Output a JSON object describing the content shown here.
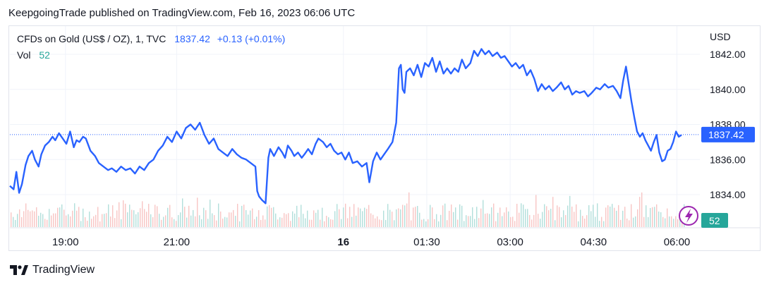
{
  "header": {
    "published": "KeepgoingTrade published on TradingView.com, Feb 16, 2023 06:06 UTC"
  },
  "legend": {
    "symbol": "CFDs on Gold (US$ / OZ), 1, TVC",
    "price": "1837.42",
    "change": "+0.13 (+0.01%)",
    "vol_label": "Vol",
    "vol_value": "52"
  },
  "axis": {
    "currency": "USD",
    "last_price_label": "1837.42",
    "last_volume_label": "52"
  },
  "footer": {
    "brand": "TradingView"
  },
  "colors": {
    "line": "#2962ff",
    "vol_up": "#26a69a",
    "vol_down": "#ef5350",
    "badge": "#9c27b0"
  },
  "icons": {
    "flash": "lightning-icon",
    "logo": "tradingview-logo-icon"
  },
  "chart_data": {
    "type": "line",
    "title": "CFDs on Gold (US$ / OZ), 1, TVC",
    "ylabel": "USD",
    "ylim": [
      1833.0,
      1843.0
    ],
    "yticks": [
      "1834.00",
      "1836.00",
      "1838.00",
      "1840.00",
      "1842.00"
    ],
    "xticks": [
      "19:00",
      "21:00",
      "16",
      "01:30",
      "03:00",
      "04:30",
      "06:00"
    ],
    "x_start": "18:00",
    "x_end": "06:08",
    "last_price": 1837.42,
    "series": [
      {
        "name": "",
        "points": [
          [
            "18:00",
            1834.5
          ],
          [
            "18:04",
            1834.3
          ],
          [
            "18:07",
            1835.3
          ],
          [
            "18:10",
            1834.1
          ],
          [
            "18:13",
            1834.6
          ],
          [
            "18:17",
            1835.7
          ],
          [
            "18:20",
            1836.2
          ],
          [
            "18:24",
            1836.5
          ],
          [
            "18:27",
            1836.0
          ],
          [
            "18:31",
            1835.6
          ],
          [
            "18:34",
            1836.3
          ],
          [
            "18:38",
            1836.8
          ],
          [
            "18:42",
            1837.0
          ],
          [
            "18:46",
            1837.3
          ],
          [
            "18:49",
            1837.1
          ],
          [
            "18:53",
            1837.5
          ],
          [
            "18:57",
            1837.2
          ],
          [
            "19:01",
            1836.9
          ],
          [
            "19:05",
            1837.6
          ],
          [
            "19:09",
            1836.7
          ],
          [
            "19:12",
            1837.1
          ],
          [
            "19:15",
            1837.0
          ],
          [
            "19:19",
            1837.3
          ],
          [
            "19:22",
            1837.2
          ],
          [
            "19:27",
            1836.5
          ],
          [
            "19:32",
            1836.2
          ],
          [
            "19:36",
            1835.8
          ],
          [
            "19:41",
            1835.6
          ],
          [
            "19:46",
            1835.4
          ],
          [
            "19:50",
            1835.5
          ],
          [
            "19:55",
            1835.3
          ],
          [
            "20:00",
            1835.6
          ],
          [
            "20:05",
            1835.4
          ],
          [
            "20:10",
            1835.5
          ],
          [
            "20:15",
            1835.2
          ],
          [
            "20:20",
            1835.6
          ],
          [
            "20:25",
            1835.4
          ],
          [
            "20:30",
            1835.8
          ],
          [
            "20:35",
            1836.0
          ],
          [
            "20:40",
            1836.5
          ],
          [
            "20:45",
            1836.8
          ],
          [
            "20:50",
            1837.3
          ],
          [
            "20:55",
            1837.0
          ],
          [
            "21:00",
            1837.6
          ],
          [
            "21:05",
            1837.2
          ],
          [
            "21:10",
            1837.8
          ],
          [
            "21:15",
            1838.0
          ],
          [
            "21:20",
            1837.7
          ],
          [
            "21:25",
            1838.1
          ],
          [
            "21:30",
            1837.4
          ],
          [
            "21:35",
            1836.9
          ],
          [
            "21:40",
            1837.2
          ],
          [
            "21:45",
            1836.6
          ],
          [
            "21:50",
            1836.4
          ],
          [
            "21:55",
            1836.2
          ],
          [
            "22:00",
            1836.6
          ],
          [
            "22:05",
            1836.3
          ],
          [
            "22:10",
            1836.1
          ],
          [
            "22:15",
            1836.0
          ],
          [
            "22:20",
            1835.8
          ],
          [
            "22:25",
            1835.6
          ],
          [
            "22:27",
            1834.2
          ],
          [
            "22:29",
            1833.9
          ],
          [
            "22:32",
            1833.7
          ],
          [
            "22:36",
            1833.5
          ],
          [
            "22:39",
            1836.1
          ],
          [
            "22:41",
            1836.6
          ],
          [
            "22:45",
            1836.2
          ],
          [
            "22:50",
            1836.7
          ],
          [
            "22:54",
            1836.4
          ],
          [
            "22:57",
            1836.1
          ],
          [
            "23:00",
            1836.8
          ],
          [
            "23:04",
            1836.5
          ],
          [
            "23:07",
            1836.2
          ],
          [
            "23:11",
            1836.4
          ],
          [
            "23:15",
            1836.1
          ],
          [
            "23:18",
            1836.3
          ],
          [
            "23:22",
            1836.6
          ],
          [
            "23:26",
            1836.3
          ],
          [
            "23:30",
            1836.9
          ],
          [
            "23:33",
            1837.2
          ],
          [
            "23:38",
            1837.0
          ],
          [
            "23:42",
            1836.7
          ],
          [
            "23:46",
            1836.9
          ],
          [
            "23:50",
            1836.5
          ],
          [
            "23:54",
            1836.3
          ],
          [
            "23:58",
            1836.4
          ],
          [
            "00:02",
            1836.0
          ],
          [
            "00:06",
            1836.4
          ],
          [
            "00:10",
            1835.8
          ],
          [
            "00:15",
            1835.9
          ],
          [
            "00:20",
            1835.6
          ],
          [
            "00:25",
            1835.8
          ],
          [
            "00:28",
            1834.7
          ],
          [
            "00:32",
            1835.9
          ],
          [
            "00:36",
            1836.4
          ],
          [
            "00:40",
            1836.0
          ],
          [
            "00:44",
            1836.3
          ],
          [
            "00:48",
            1836.6
          ],
          [
            "00:53",
            1837.0
          ],
          [
            "00:57",
            1838.1
          ],
          [
            "01:00",
            1841.2
          ],
          [
            "01:02",
            1841.4
          ],
          [
            "01:04",
            1840.0
          ],
          [
            "01:06",
            1839.8
          ],
          [
            "01:08",
            1841.0
          ],
          [
            "01:12",
            1841.2
          ],
          [
            "01:16",
            1840.8
          ],
          [
            "01:20",
            1841.4
          ],
          [
            "01:24",
            1840.7
          ],
          [
            "01:28",
            1841.5
          ],
          [
            "01:32",
            1841.3
          ],
          [
            "01:36",
            1841.8
          ],
          [
            "01:40",
            1841.0
          ],
          [
            "01:44",
            1841.6
          ],
          [
            "01:48",
            1840.9
          ],
          [
            "01:52",
            1841.2
          ],
          [
            "01:56",
            1840.9
          ],
          [
            "02:00",
            1841.2
          ],
          [
            "02:04",
            1841.0
          ],
          [
            "02:08",
            1841.7
          ],
          [
            "02:12",
            1841.2
          ],
          [
            "02:17",
            1841.5
          ],
          [
            "02:21",
            1842.2
          ],
          [
            "02:25",
            1841.9
          ],
          [
            "02:29",
            1842.3
          ],
          [
            "02:33",
            1842.0
          ],
          [
            "02:37",
            1842.2
          ],
          [
            "02:41",
            1841.9
          ],
          [
            "02:46",
            1842.1
          ],
          [
            "02:50",
            1841.8
          ],
          [
            "02:54",
            1841.9
          ],
          [
            "02:58",
            1841.6
          ],
          [
            "03:02",
            1841.3
          ],
          [
            "03:06",
            1841.5
          ],
          [
            "03:10",
            1841.2
          ],
          [
            "03:14",
            1841.4
          ],
          [
            "03:18",
            1840.8
          ],
          [
            "03:22",
            1841.1
          ],
          [
            "03:26",
            1840.6
          ],
          [
            "03:30",
            1839.9
          ],
          [
            "03:34",
            1840.3
          ],
          [
            "03:38",
            1840.0
          ],
          [
            "03:42",
            1840.2
          ],
          [
            "03:46",
            1839.9
          ],
          [
            "03:50",
            1840.1
          ],
          [
            "03:55",
            1840.4
          ],
          [
            "03:59",
            1840.0
          ],
          [
            "04:03",
            1840.2
          ],
          [
            "04:07",
            1839.7
          ],
          [
            "04:11",
            1839.9
          ],
          [
            "04:15",
            1839.8
          ],
          [
            "04:20",
            1839.9
          ],
          [
            "04:24",
            1839.6
          ],
          [
            "04:28",
            1839.8
          ],
          [
            "04:33",
            1840.1
          ],
          [
            "04:37",
            1840.0
          ],
          [
            "04:42",
            1840.3
          ],
          [
            "04:46",
            1840.1
          ],
          [
            "04:51",
            1840.2
          ],
          [
            "04:55",
            1839.9
          ],
          [
            "04:59",
            1839.5
          ],
          [
            "05:02",
            1840.5
          ],
          [
            "05:05",
            1841.3
          ],
          [
            "05:08",
            1840.3
          ],
          [
            "05:11",
            1839.3
          ],
          [
            "05:14",
            1838.4
          ],
          [
            "05:17",
            1837.6
          ],
          [
            "05:20",
            1837.3
          ],
          [
            "05:23",
            1837.5
          ],
          [
            "05:26",
            1837.1
          ],
          [
            "05:29",
            1836.8
          ],
          [
            "05:32",
            1836.5
          ],
          [
            "05:35",
            1837.0
          ],
          [
            "05:38",
            1837.4
          ],
          [
            "05:41",
            1836.4
          ],
          [
            "05:44",
            1835.9
          ],
          [
            "05:47",
            1836.0
          ],
          [
            "05:50",
            1836.5
          ],
          [
            "05:53",
            1836.6
          ],
          [
            "05:56",
            1837.0
          ],
          [
            "05:59",
            1837.6
          ],
          [
            "06:02",
            1837.3
          ],
          [
            "06:05",
            1837.4
          ]
        ]
      }
    ],
    "volume": {
      "note": "Volume bars rendered at bottom of pane; last volume 52",
      "last": 52
    }
  }
}
